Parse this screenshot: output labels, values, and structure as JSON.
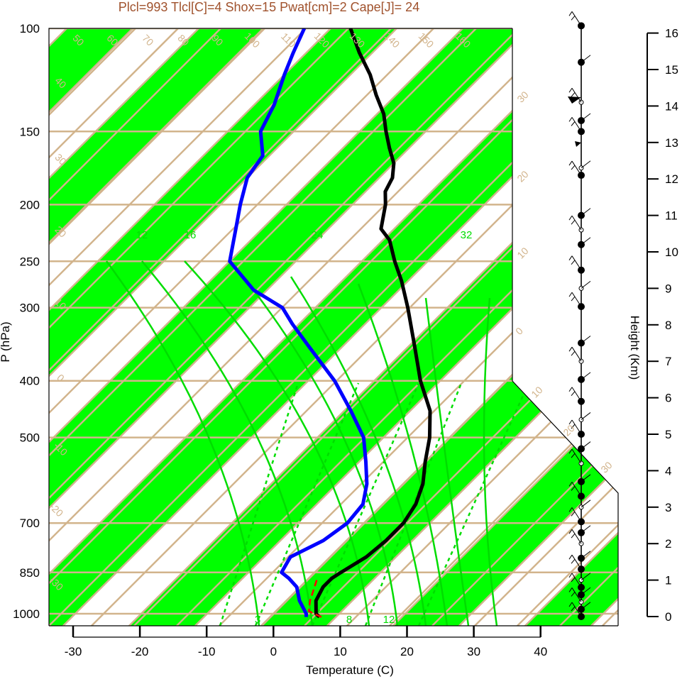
{
  "title": "Plcl=993 Tlcl[C]=4 Shox=15 Pwat[cm]=2 Cape[J]= 24",
  "chart_data": {
    "type": "skew-t",
    "xlabel": "Temperature (C)",
    "ylabel": "P (hPa)",
    "y2label": "Height (Km)",
    "x_ticks": [
      "-30",
      "-20",
      "-10",
      "0",
      "10",
      "20",
      "30",
      "40"
    ],
    "p_ticks": [
      "100",
      "150",
      "200",
      "250",
      "300",
      "400",
      "500",
      "700",
      "850",
      "1000"
    ],
    "height_ticks": [
      "0",
      "1",
      "2",
      "3",
      "4",
      "5",
      "6",
      "7",
      "8",
      "9",
      "10",
      "11",
      "12",
      "13",
      "14",
      "15",
      "16"
    ],
    "temperature_profile": [
      {
        "p": 1013,
        "t": 7.5
      },
      {
        "p": 1000,
        "t": 6.5
      },
      {
        "p": 950,
        "t": 4.5
      },
      {
        "p": 900,
        "t": 3.5
      },
      {
        "p": 870,
        "t": 3.5
      },
      {
        "p": 850,
        "t": 4
      },
      {
        "p": 800,
        "t": 5.5
      },
      {
        "p": 750,
        "t": 6
      },
      {
        "p": 700,
        "t": 6
      },
      {
        "p": 650,
        "t": 5
      },
      {
        "p": 600,
        "t": 3
      },
      {
        "p": 550,
        "t": 0
      },
      {
        "p": 500,
        "t": -3
      },
      {
        "p": 450,
        "t": -7
      },
      {
        "p": 400,
        "t": -13
      },
      {
        "p": 350,
        "t": -19
      },
      {
        "p": 300,
        "t": -26
      },
      {
        "p": 270,
        "t": -31
      },
      {
        "p": 250,
        "t": -35
      },
      {
        "p": 230,
        "t": -39
      },
      {
        "p": 220,
        "t": -42
      },
      {
        "p": 200,
        "t": -45
      },
      {
        "p": 190,
        "t": -47
      },
      {
        "p": 180,
        "t": -48
      },
      {
        "p": 170,
        "t": -50
      },
      {
        "p": 160,
        "t": -53
      },
      {
        "p": 150,
        "t": -56
      },
      {
        "p": 140,
        "t": -59
      },
      {
        "p": 130,
        "t": -63
      },
      {
        "p": 120,
        "t": -67
      },
      {
        "p": 110,
        "t": -72
      },
      {
        "p": 100,
        "t": -77
      }
    ],
    "dewpoint_profile": [
      {
        "p": 1013,
        "t": 5.5
      },
      {
        "p": 1000,
        "t": 5
      },
      {
        "p": 950,
        "t": 2
      },
      {
        "p": 900,
        "t": -0.5
      },
      {
        "p": 870,
        "t": -3
      },
      {
        "p": 850,
        "t": -5
      },
      {
        "p": 800,
        "t": -6
      },
      {
        "p": 750,
        "t": -3.5
      },
      {
        "p": 700,
        "t": -2.5
      },
      {
        "p": 650,
        "t": -3
      },
      {
        "p": 600,
        "t": -5.5
      },
      {
        "p": 550,
        "t": -9
      },
      {
        "p": 500,
        "t": -13
      },
      {
        "p": 450,
        "t": -19
      },
      {
        "p": 400,
        "t": -26
      },
      {
        "p": 350,
        "t": -35
      },
      {
        "p": 320,
        "t": -41
      },
      {
        "p": 300,
        "t": -45
      },
      {
        "p": 280,
        "t": -52
      },
      {
        "p": 250,
        "t": -60
      },
      {
        "p": 220,
        "t": -64
      },
      {
        "p": 200,
        "t": -67
      },
      {
        "p": 180,
        "t": -70
      },
      {
        "p": 165,
        "t": -71
      },
      {
        "p": 150,
        "t": -75
      },
      {
        "p": 135,
        "t": -77
      },
      {
        "p": 120,
        "t": -80
      },
      {
        "p": 110,
        "t": -82
      },
      {
        "p": 100,
        "t": -84
      }
    ],
    "parcel_path": [
      {
        "p": 1013,
        "t": 7.8
      },
      {
        "p": 990,
        "t": 5
      },
      {
        "p": 950,
        "t": 3.6
      },
      {
        "p": 900,
        "t": 2.2
      },
      {
        "p": 870,
        "t": 1.3
      }
    ],
    "isotherm_labels": [
      "50",
      "60",
      "70",
      "80",
      "90",
      "100",
      "110",
      "120",
      "130",
      "140",
      "150",
      "160",
      "40",
      "30",
      "20",
      "10",
      "0",
      "-10",
      "-20",
      "-30"
    ],
    "right_isotherm_labels": [
      "30",
      "20",
      "10",
      "0",
      "10",
      "20",
      "30"
    ],
    "mixing_ratio_labels": [
      "12",
      "16",
      "24",
      "32",
      "3",
      "8",
      "12"
    ],
    "colors": {
      "temperature": "#000000",
      "dewpoint": "#0000ff",
      "parcel": "#ff0000",
      "isotherm_band": "#00ff00",
      "isobar": "#d2b48c",
      "adiabat": "#00dd00",
      "title": "#a0522d"
    },
    "wind_profile_height_km": [
      0,
      0.2,
      0.4,
      0.6,
      0.8,
      1,
      1.3,
      1.6,
      2,
      2.3,
      2.6,
      3,
      3.3,
      3.7,
      4.2,
      4.6,
      5,
      5.4,
      5.9,
      6.5,
      7,
      7.5,
      8.5,
      9,
      9.5,
      10.2,
      10.6,
      11,
      12.1,
      12.3,
      13.3,
      13.6,
      14.1,
      15.2,
      16.2
    ],
    "legend": "none",
    "grid": true
  }
}
